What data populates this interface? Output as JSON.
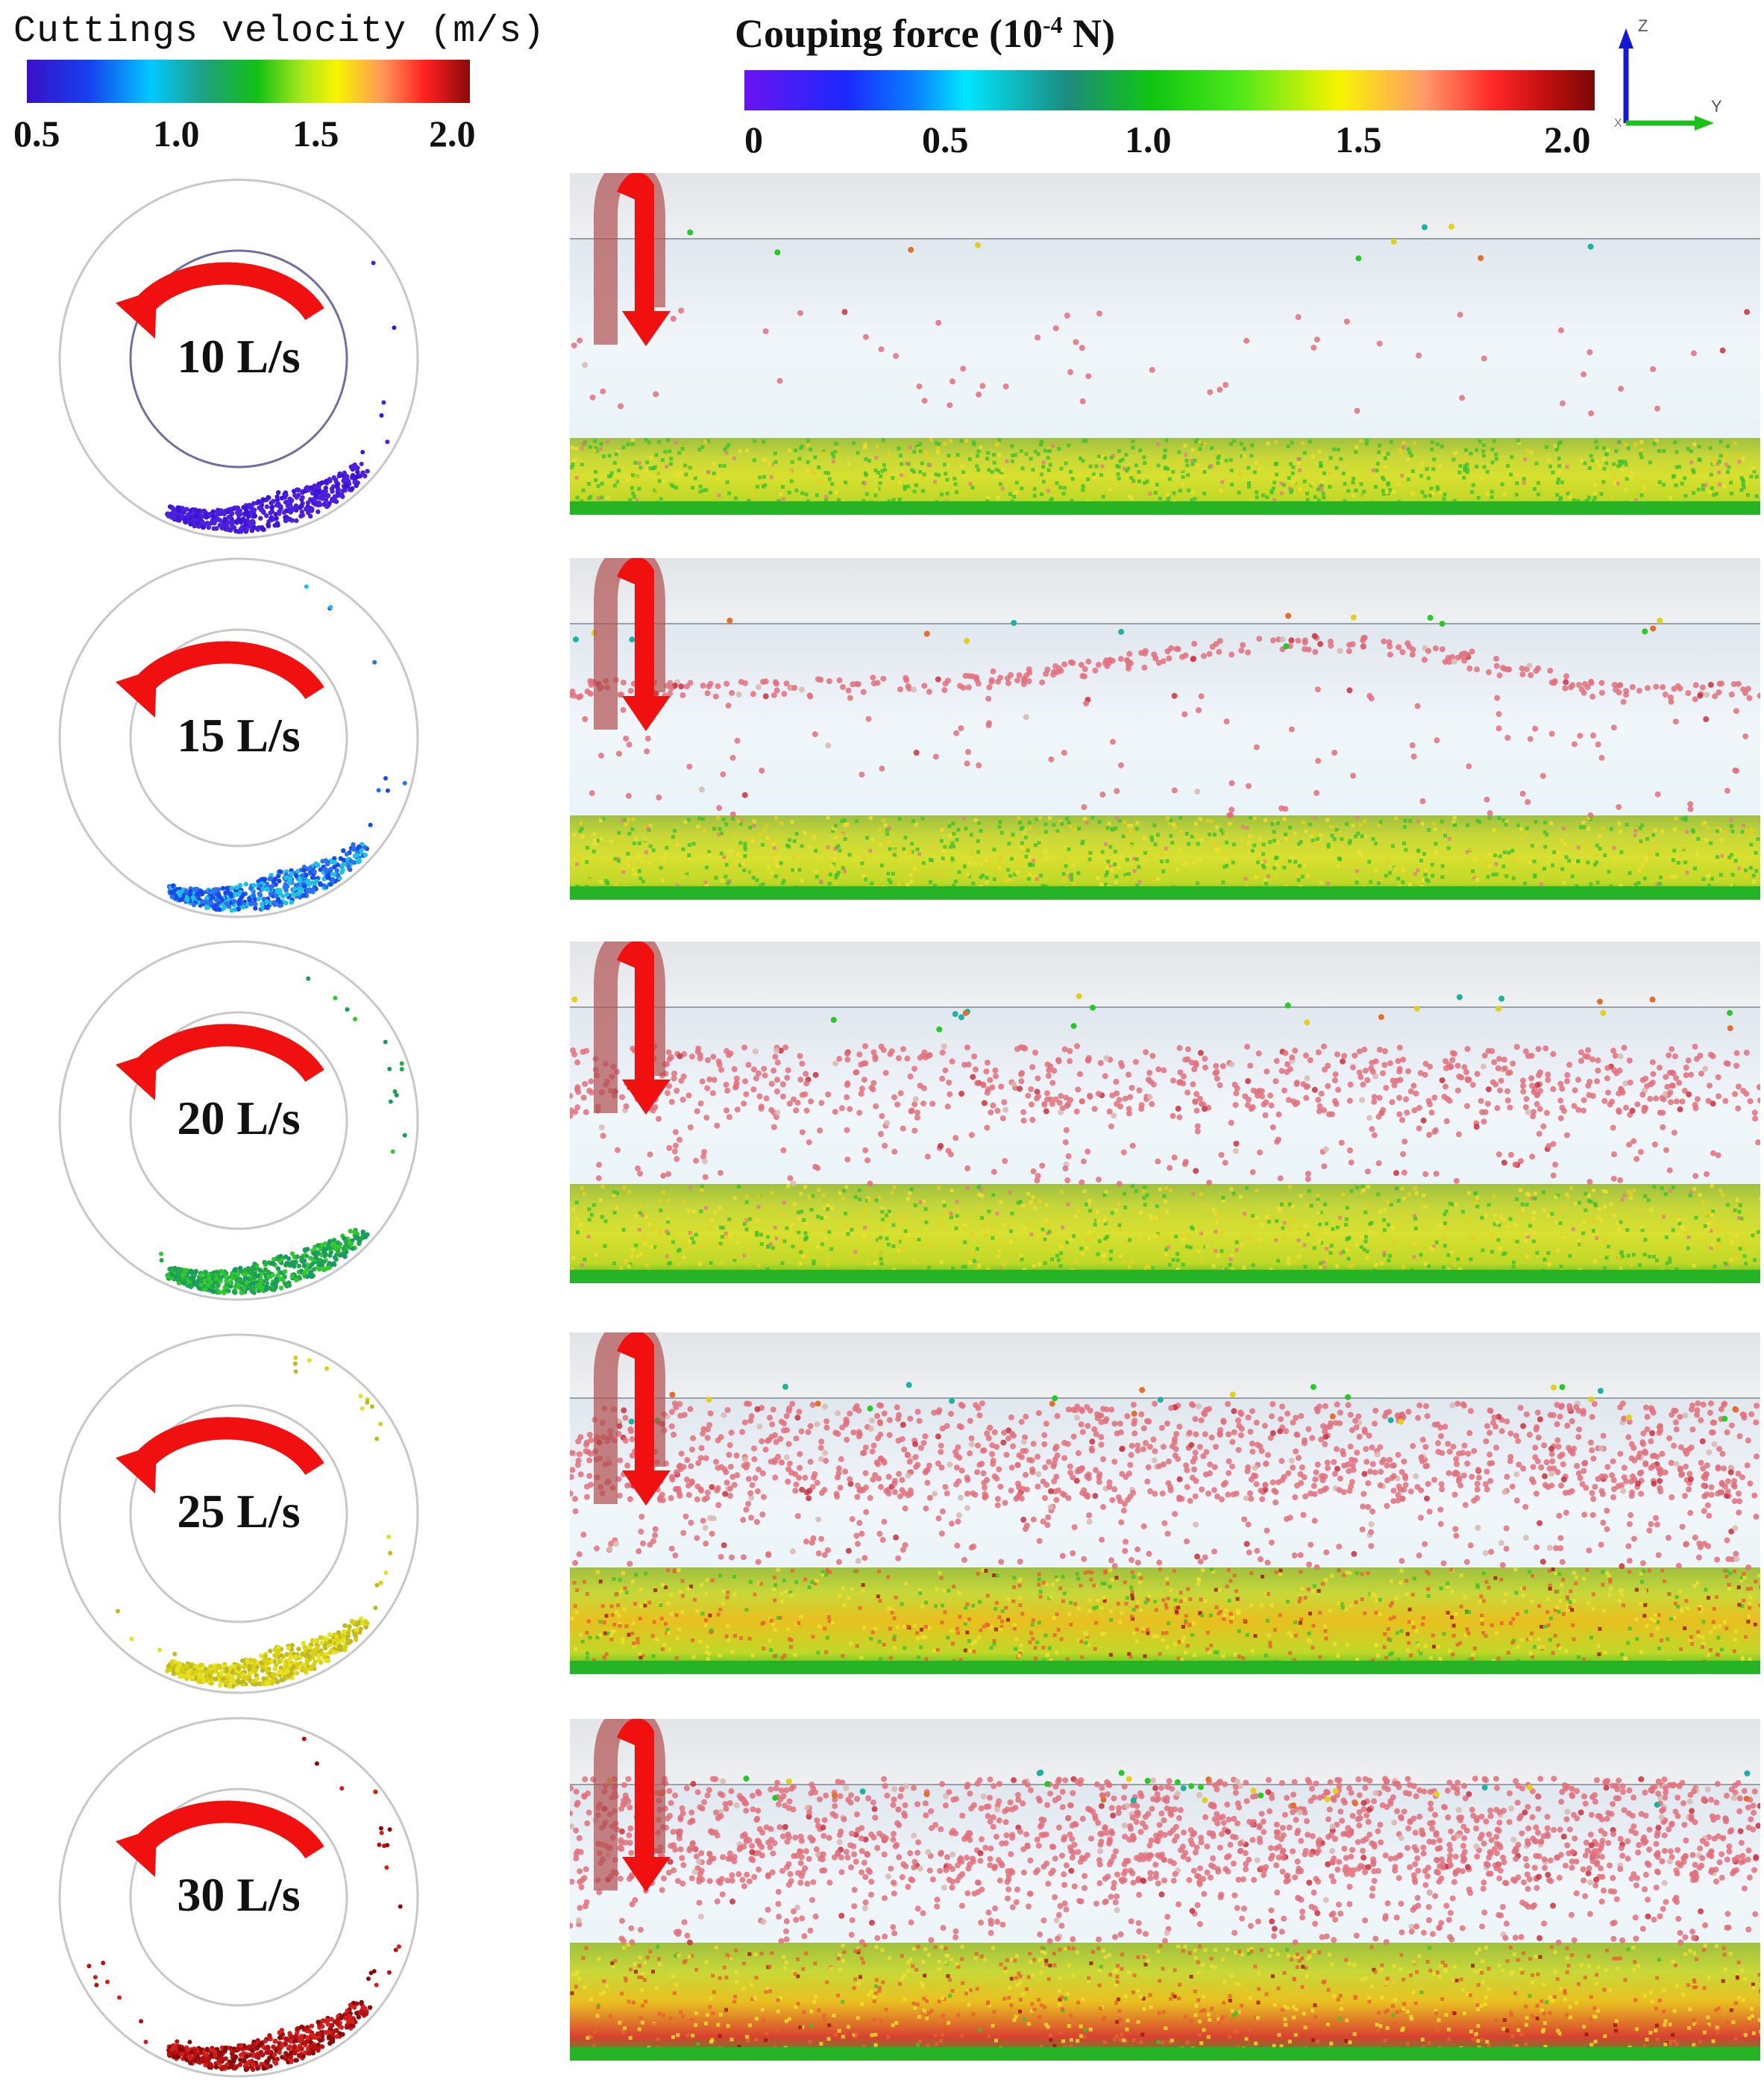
{
  "legend_velocity": {
    "title": "Cuttings velocity (m/s)",
    "ticks": [
      "0.5",
      "1.0",
      "1.5",
      "2.0"
    ]
  },
  "legend_force": {
    "title_main": "Couping force (10",
    "title_exp": "-4",
    "title_unit": " N)",
    "ticks": [
      "0",
      "0.5",
      "1.0",
      "1.5",
      "2.0"
    ]
  },
  "axes": {
    "z": "Z",
    "y": "Y",
    "x": "X"
  },
  "colors": {
    "arrow": "#f01010",
    "arrow_ghost": "#b05050",
    "particle_suspended": "#e0707c",
    "bed_green": "#2ec82a",
    "bed_yellow": "#e6e020"
  },
  "panels": [
    {
      "label": "10 L/s",
      "flow_rate": 10
    },
    {
      "label": "15 L/s",
      "flow_rate": 15
    },
    {
      "label": "20 L/s",
      "flow_rate": 20
    },
    {
      "label": "25 L/s",
      "flow_rate": 25
    },
    {
      "label": "30 L/s",
      "flow_rate": 30
    }
  ]
}
